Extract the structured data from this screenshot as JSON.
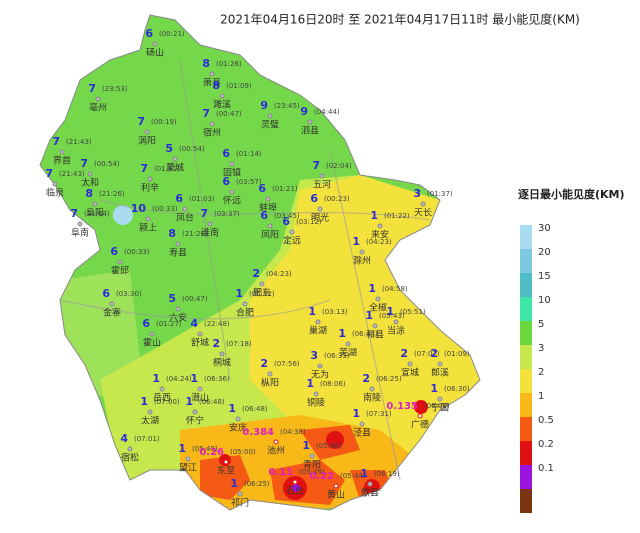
{
  "title": "2021年04月16日20时  至  2021年04月17日11时  最小能见度(KM)",
  "legend": {
    "title": "逐日最小能见度(KM)",
    "levels": [
      {
        "label": "30",
        "color": "#a8dcee"
      },
      {
        "label": "20",
        "color": "#7ec8e2"
      },
      {
        "label": "15",
        "color": "#4fbcc6"
      },
      {
        "label": "10",
        "color": "#3ee6a8"
      },
      {
        "label": "5",
        "color": "#6ad83c"
      },
      {
        "label": "3",
        "color": "#c6e84c"
      },
      {
        "label": "2",
        "color": "#f4e23c"
      },
      {
        "label": "1",
        "color": "#f8b818"
      },
      {
        "label": "0.5",
        "color": "#f45a14"
      },
      {
        "label": "0.2",
        "color": "#e01010"
      },
      {
        "label": "0.1",
        "color": "#9a14e0"
      },
      {
        "label": "",
        "color": "#7a3410"
      }
    ]
  },
  "places": [
    {
      "name": "砀山",
      "value": 6,
      "time": "(00:21)"
    },
    {
      "name": "萧县",
      "value": 8,
      "time": "(01:26)"
    },
    {
      "name": "濉溪",
      "value": 8,
      "time": "(01:09)"
    },
    {
      "name": "亳州",
      "value": 7,
      "time": "(23:53)"
    },
    {
      "name": "涡阳",
      "value": 7,
      "time": "(00:19)"
    },
    {
      "name": "宿州",
      "value": 7,
      "time": "(00:47)"
    },
    {
      "name": "灵璧",
      "value": 9,
      "time": "(23:45)"
    },
    {
      "name": "泗县",
      "value": 9,
      "time": "(04:44)"
    },
    {
      "name": "界首",
      "value": 7,
      "time": "(21:43)"
    },
    {
      "name": "太和",
      "value": 7,
      "time": "(00:54)"
    },
    {
      "name": "临泉",
      "value": 7,
      "time": "(21:43)"
    },
    {
      "name": "蒙城",
      "value": 5,
      "time": "(00:54)"
    },
    {
      "name": "固镇",
      "value": 6,
      "time": "(01:14)"
    },
    {
      "name": "五河",
      "value": 7,
      "time": "(02:04)"
    },
    {
      "name": "阜阳",
      "value": 8,
      "time": "(21:26)"
    },
    {
      "name": "阜南",
      "value": 7,
      "time": "(21:44)"
    },
    {
      "name": "利辛",
      "value": 7,
      "time": "(01:41)"
    },
    {
      "name": "怀远",
      "value": 6,
      "time": "(03:57)"
    },
    {
      "name": "蚌埠",
      "value": 6,
      "time": "(01:21)"
    },
    {
      "name": "明光",
      "value": 6,
      "time": "(00:23)"
    },
    {
      "name": "颍上",
      "value": 10,
      "time": "(00:33)"
    },
    {
      "name": "凤台",
      "value": 6,
      "time": "(01:03)"
    },
    {
      "name": "凤阳",
      "value": 6,
      "time": "(03:45)"
    },
    {
      "name": "天长",
      "value": 3,
      "time": "(01:37)"
    },
    {
      "name": "来安",
      "value": 1,
      "time": "(01:22)"
    },
    {
      "name": "滁州",
      "value": 1,
      "time": "(04:23)"
    },
    {
      "name": "寿县",
      "value": 8,
      "time": "(21:26)"
    },
    {
      "name": "淮南",
      "value": 7,
      "time": "(03:37)"
    },
    {
      "name": "定远",
      "value": 6,
      "time": "(03:12)"
    },
    {
      "name": "霍邱",
      "value": 6,
      "time": "(00:33)"
    },
    {
      "name": "六安",
      "value": 5,
      "time": "(00:47)"
    },
    {
      "name": "金寨",
      "value": 6,
      "time": "(03:30)"
    },
    {
      "name": "肥东",
      "value": 2,
      "time": "(04:23)"
    },
    {
      "name": "合肥",
      "value": 1,
      "time": "(05:12)"
    },
    {
      "name": "全椒",
      "value": 1,
      "time": "(04:58)"
    },
    {
      "name": "和县",
      "value": 1,
      "time": "(05:43)"
    },
    {
      "name": "舒城",
      "value": 4,
      "time": "(22:48)"
    },
    {
      "name": "巢湖",
      "value": 1,
      "time": "(03:13)"
    },
    {
      "name": "霍山",
      "value": 6,
      "time": "(01:27)"
    },
    {
      "name": "无为",
      "value": 3,
      "time": "(06:33)"
    },
    {
      "name": "芜湖",
      "value": 1,
      "time": "(06:44)"
    },
    {
      "name": "当涂",
      "value": 1,
      "time": "(05:51)"
    },
    {
      "name": "宣城",
      "value": 2,
      "time": "(07:02)"
    },
    {
      "name": "郎溪",
      "value": 2,
      "time": "(01:09)"
    },
    {
      "name": "广德",
      "value": 0.135,
      "time": "(06:00)"
    },
    {
      "name": "岳西",
      "value": 1,
      "time": "(04:24)"
    },
    {
      "name": "潜山",
      "value": 1,
      "time": "(06:36)"
    },
    {
      "name": "桐城",
      "value": 2,
      "time": "(07:18)"
    },
    {
      "name": "枞阳",
      "value": 2,
      "time": "(07:56)"
    },
    {
      "name": "铜陵",
      "value": 1,
      "time": "(08:06)"
    },
    {
      "name": "南陵",
      "value": 2,
      "time": "(06:25)"
    },
    {
      "name": "泾县",
      "value": 1,
      "time": "(07:31)"
    },
    {
      "name": "宁国",
      "value": 1,
      "time": "(06:30)"
    },
    {
      "name": "太湖",
      "value": 1,
      "time": "(07:00)"
    },
    {
      "name": "怀宁",
      "value": 1,
      "time": "(06:48)"
    },
    {
      "name": "安庆",
      "value": 1,
      "time": "(06:48)"
    },
    {
      "name": "宿松",
      "value": 4,
      "time": "(07:01)"
    },
    {
      "name": "望江",
      "value": 1,
      "time": "(05:49)"
    },
    {
      "name": "池州",
      "value": 0.384,
      "time": "(04:38)"
    },
    {
      "name": "青阳",
      "value": 1,
      "time": "(05:46)"
    },
    {
      "name": "东至",
      "value": 0.26,
      "time": "(05:00)"
    },
    {
      "name": "石台",
      "value": 0.11,
      "time": "(05:49)"
    },
    {
      "name": "祁门",
      "value": 1,
      "time": "(06:25)"
    },
    {
      "name": "黄山",
      "value": 0.22,
      "time": "(05:44)"
    },
    {
      "name": "歙县",
      "value": 1,
      "time": "(06:19)"
    }
  ]
}
